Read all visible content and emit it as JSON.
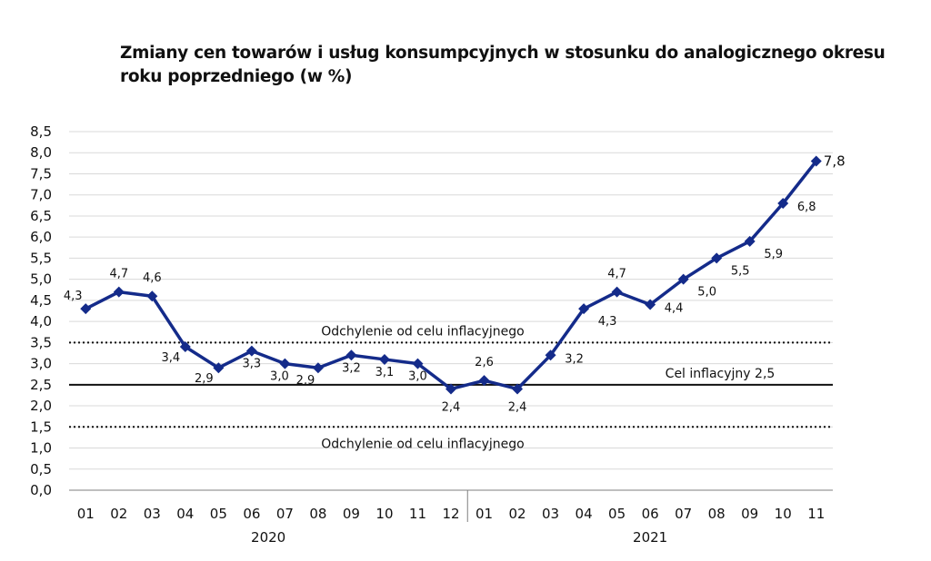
{
  "chart_data": {
    "type": "line",
    "title": "Zmiany cen towarów i usług konsumpcyjnych w stosunku do analogicznego okresu roku poprzedniego (w %)",
    "xlabel": "",
    "ylabel": "",
    "ylim": [
      0,
      8.5
    ],
    "y_ticks": [
      "0,0",
      "0,5",
      "1,0",
      "1,5",
      "2,0",
      "2,5",
      "3,0",
      "3,5",
      "4,0",
      "4,5",
      "5,0",
      "5,5",
      "6,0",
      "6,5",
      "7,0",
      "7,5",
      "8,0",
      "8,5"
    ],
    "categories": [
      "01",
      "02",
      "03",
      "04",
      "05",
      "06",
      "07",
      "08",
      "09",
      "10",
      "11",
      "12",
      "01",
      "02",
      "03",
      "04",
      "05",
      "06",
      "07",
      "08",
      "09",
      "10",
      "11"
    ],
    "year_groups": [
      {
        "label": "2020",
        "start": 0,
        "end": 11
      },
      {
        "label": "2021",
        "start": 12,
        "end": 22
      }
    ],
    "series": [
      {
        "values": [
          4.3,
          4.7,
          4.6,
          3.4,
          2.9,
          3.3,
          3.0,
          2.9,
          3.2,
          3.1,
          3.0,
          2.4,
          2.6,
          2.4,
          3.2,
          4.3,
          4.7,
          4.4,
          5.0,
          5.5,
          5.9,
          6.8,
          7.8
        ],
        "labels": [
          "4,3",
          "4,7",
          "4,6",
          "3,4",
          "2,9",
          "3,3",
          "3,0",
          "2,9",
          "3,2",
          "3,1",
          "3,0",
          "2,4",
          "2,6",
          "2,4",
          "3,2",
          "4,3",
          "4,7",
          "4,4",
          "5,0",
          "5,5",
          "5,9",
          "6,8",
          "7,8"
        ],
        "color": "#142b8a",
        "marker": "diamond"
      }
    ],
    "reference_lines": [
      {
        "value": 3.5,
        "style": "dotted",
        "label": "Odchylenie od celu inflacyjnego"
      },
      {
        "value": 2.5,
        "style": "solid",
        "label": "Cel inflacyjny 2,5"
      },
      {
        "value": 1.5,
        "style": "dotted",
        "label": "Odchylenie od celu inflacyjnego"
      }
    ],
    "grid": true,
    "legend": "none"
  }
}
